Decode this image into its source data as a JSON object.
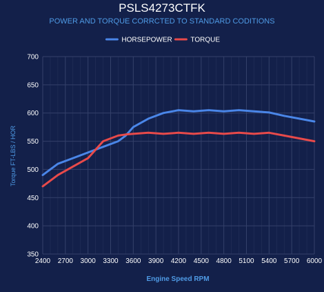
{
  "chart_data": {
    "type": "line",
    "title": "PSLS4273CTFK",
    "subtitle": "POWER AND TORQUE CORRCTED TO STANDARD CODITIONS",
    "xlabel": "Engine Speed RPM",
    "ylabel": "Torque FT-LBS / HOR",
    "x": [
      2400,
      2600,
      2800,
      3000,
      3200,
      3400,
      3500,
      3600,
      3800,
      4000,
      4200,
      4400,
      4600,
      4800,
      5000,
      5200,
      5400,
      5600,
      5800,
      6000
    ],
    "xticks": [
      2400,
      2700,
      3000,
      3300,
      3600,
      3900,
      4200,
      4500,
      4800,
      5100,
      5400,
      5700,
      6000
    ],
    "yticks": [
      350,
      400,
      450,
      500,
      550,
      600,
      650,
      700
    ],
    "xlim": [
      2400,
      6000
    ],
    "ylim": [
      350,
      700
    ],
    "grid": true,
    "legend_position": "top-center",
    "series": [
      {
        "name": "HORSEPOWER",
        "color": "#4a86e8",
        "values": [
          490,
          510,
          520,
          530,
          540,
          550,
          560,
          575,
          590,
          600,
          605,
          603,
          605,
          603,
          605,
          603,
          601,
          595,
          590,
          585
        ]
      },
      {
        "name": "TORQUE",
        "color": "#e84a4a",
        "values": [
          470,
          490,
          505,
          520,
          550,
          560,
          562,
          563,
          565,
          563,
          565,
          563,
          565,
          563,
          565,
          563,
          565,
          560,
          555,
          550
        ]
      }
    ]
  },
  "colors": {
    "background": "#13204a",
    "grid": "#34416a",
    "tick_text": "#ffffff",
    "axis_label": "#4f9be6",
    "title": "#ffffff",
    "subtitle": "#4f9be6"
  }
}
